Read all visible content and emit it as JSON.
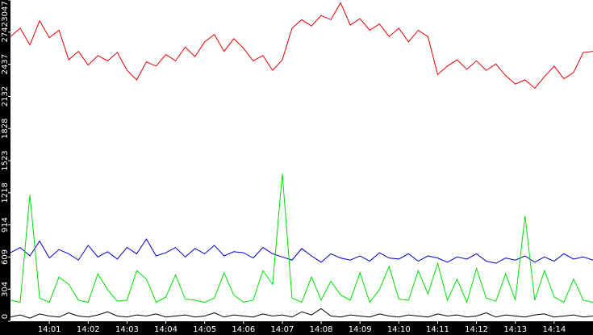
{
  "chart_data": {
    "type": "line",
    "x": [
      0,
      0.25,
      0.5,
      0.75,
      1,
      1.25,
      1.5,
      1.75,
      2,
      2.25,
      2.5,
      2.75,
      3,
      3.25,
      3.5,
      3.75,
      4,
      4.25,
      4.5,
      4.75,
      5,
      5.25,
      5.5,
      5.75,
      6,
      6.25,
      6.5,
      6.75,
      7,
      7.25,
      7.5,
      7.75,
      8,
      8.25,
      8.5,
      8.75,
      9,
      9.25,
      9.5,
      9.75,
      10,
      10.25,
      10.5,
      10.75,
      11,
      11.25,
      11.5,
      11.75,
      12,
      12.25,
      12.5,
      12.75,
      13,
      13.25,
      13.5,
      13.75,
      14,
      14.25,
      14.5,
      14.75,
      15
    ],
    "xlim": [
      0,
      15
    ],
    "xticks": [
      {
        "value": 1,
        "label": "14:01"
      },
      {
        "value": 2,
        "label": "14:02"
      },
      {
        "value": 3,
        "label": "14:03"
      },
      {
        "value": 4,
        "label": "14:04"
      },
      {
        "value": 5,
        "label": "14:05"
      },
      {
        "value": 6,
        "label": "14:06"
      },
      {
        "value": 7,
        "label": "14:07"
      },
      {
        "value": 8,
        "label": "14:08"
      },
      {
        "value": 9,
        "label": "14:09"
      },
      {
        "value": 10,
        "label": "14:10"
      },
      {
        "value": 11,
        "label": "14:11"
      },
      {
        "value": 12,
        "label": "14:12"
      },
      {
        "value": 13,
        "label": "14:13"
      },
      {
        "value": 14,
        "label": "14:14"
      }
    ],
    "ylim": [
      0,
      3047
    ],
    "yticks": [
      0,
      304,
      609,
      914,
      1218,
      1523,
      1828,
      2132,
      2437,
      2742,
      3047
    ],
    "series": [
      {
        "color": "#e00000",
        "values": [
          2700,
          2780,
          2620,
          2850,
          2690,
          2760,
          2480,
          2560,
          2430,
          2520,
          2470,
          2550,
          2380,
          2290,
          2460,
          2420,
          2530,
          2470,
          2600,
          2510,
          2650,
          2720,
          2560,
          2680,
          2590,
          2470,
          2520,
          2380,
          2480,
          2780,
          2860,
          2800,
          2900,
          2860,
          3020,
          2810,
          2870,
          2760,
          2820,
          2700,
          2780,
          2650,
          2760,
          2700,
          2340,
          2420,
          2480,
          2390,
          2470,
          2380,
          2440,
          2330,
          2250,
          2290,
          2210,
          2320,
          2420,
          2300,
          2360,
          2550,
          2560
        ]
      },
      {
        "color": "#0000c0",
        "values": [
          650,
          700,
          620,
          760,
          600,
          680,
          640,
          580,
          720,
          610,
          660,
          590,
          700,
          640,
          780,
          620,
          650,
          700,
          610,
          690,
          640,
          720,
          620,
          660,
          650,
          600,
          700,
          640,
          610,
          580,
          690,
          620,
          560,
          640,
          600,
          580,
          620,
          570,
          650,
          600,
          590,
          640,
          570,
          620,
          600,
          560,
          610,
          590,
          640,
          570,
          550,
          600,
          580,
          620,
          560,
          610,
          570,
          640,
          590,
          610,
          580
        ]
      },
      {
        "color": "#00e000",
        "values": [
          200,
          180,
          1200,
          220,
          180,
          420,
          350,
          200,
          180,
          450,
          300,
          190,
          200,
          480,
          400,
          180,
          230,
          440,
          210,
          200,
          180,
          220,
          460,
          250,
          180,
          200,
          480,
          350,
          1400,
          220,
          180,
          420,
          200,
          380,
          250,
          200,
          460,
          180,
          300,
          520,
          210,
          200,
          480,
          260,
          550,
          200,
          400,
          180,
          500,
          220,
          190,
          450,
          200,
          1000,
          200,
          480,
          230,
          180,
          400,
          200,
          180
        ]
      },
      {
        "color": "#000000",
        "values": [
          40,
          60,
          30,
          70,
          50,
          40,
          80,
          50,
          40,
          60,
          90,
          50,
          40,
          60,
          50,
          70,
          40,
          50,
          60,
          40,
          50,
          80,
          40,
          60,
          50,
          40,
          70,
          50,
          60,
          40,
          90,
          60,
          120,
          50,
          40,
          60,
          50,
          40,
          70,
          50,
          40,
          60,
          50,
          40,
          70,
          50,
          60,
          40,
          50,
          80,
          40,
          60,
          50,
          40,
          60,
          70,
          40,
          50,
          60,
          40,
          50
        ]
      }
    ],
    "grid": false
  }
}
